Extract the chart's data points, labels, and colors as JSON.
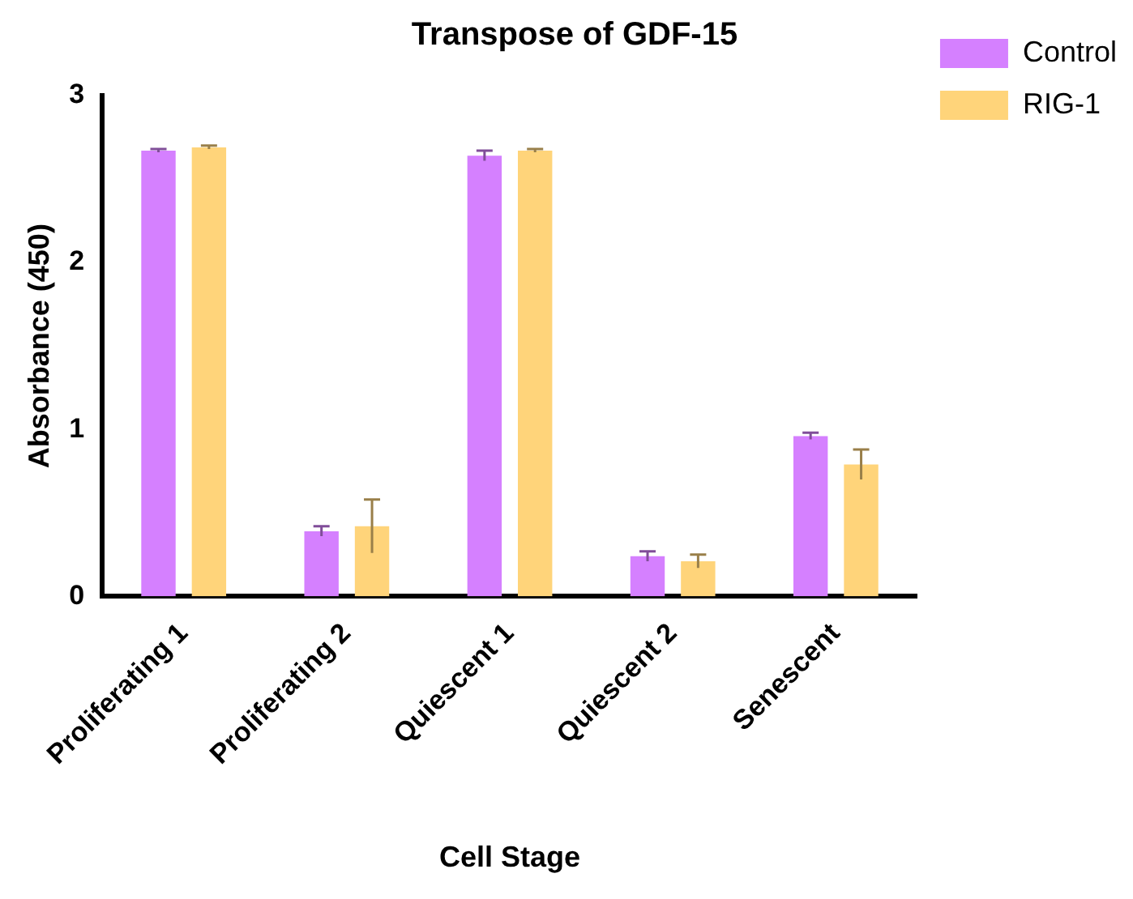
{
  "chart_data": {
    "type": "bar",
    "title": "Transpose of GDF-15",
    "xlabel": "Cell Stage",
    "ylabel": "Absorbance (450)",
    "categories": [
      "Proliferating 1",
      "Proliferating 2",
      "Quiescent 1",
      "Quiescent 2",
      "Senescent"
    ],
    "series": [
      {
        "name": "Control",
        "color": "#d580ff",
        "values": [
          2.67,
          0.39,
          2.64,
          0.24,
          0.96
        ],
        "errors": [
          0.01,
          0.03,
          0.03,
          0.03,
          0.02
        ]
      },
      {
        "name": "RIG-1",
        "color": "#ffd47a",
        "values": [
          2.69,
          0.42,
          2.67,
          0.21,
          0.79
        ],
        "errors": [
          0.01,
          0.16,
          0.01,
          0.04,
          0.09
        ]
      }
    ],
    "ylim": [
      0,
      3
    ],
    "yticks": [
      0,
      1,
      2,
      3
    ],
    "grid": false,
    "legend": "right"
  }
}
